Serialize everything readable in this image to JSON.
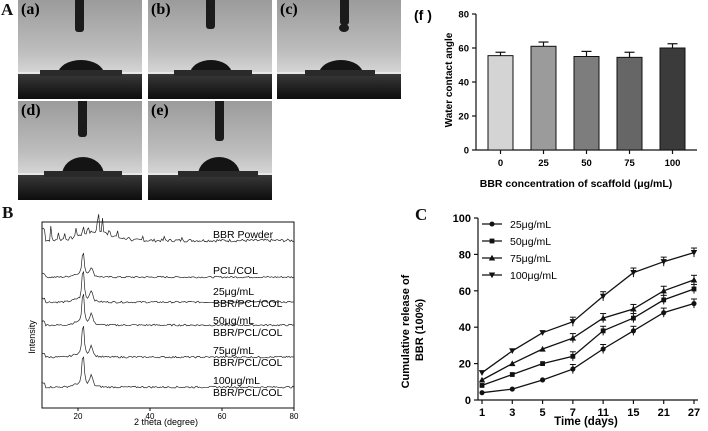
{
  "panel_a": {
    "letter": "A",
    "photos": [
      {
        "label": "(a)"
      },
      {
        "label": "(b)"
      },
      {
        "label": "(c)"
      },
      {
        "label": "(d)"
      },
      {
        "label": "(e)"
      }
    ]
  },
  "panel_b": {
    "letter": "B"
  },
  "panel_c": {
    "letter": "C"
  },
  "chart_data": [
    {
      "id": "f",
      "type": "bar",
      "panel_label": "(f )",
      "categories": [
        "0",
        "25",
        "50",
        "75",
        "100"
      ],
      "values": [
        55.5,
        61,
        55,
        54.5,
        60
      ],
      "errors": [
        2,
        2.5,
        3,
        3,
        2.5
      ],
      "bar_colors": [
        "#d4d4d4",
        "#9b9b9b",
        "#7d7d7d",
        "#666666",
        "#3b3b3b"
      ],
      "xlabel": "BBR concentration of scaffold (μg/mL)",
      "ylabel": "Water contact angle",
      "ylim": [
        0,
        80
      ],
      "yticks": [
        "0",
        "20",
        "40",
        "60",
        "80"
      ]
    },
    {
      "id": "B",
      "type": "line",
      "xlabel": "2 theta (degree)",
      "ylabel": "Intensity",
      "xlim": [
        10,
        80
      ],
      "xticks": [
        "20",
        "40",
        "60",
        "80"
      ],
      "series_labels": [
        {
          "lines": [
            "BBR Powder"
          ]
        },
        {
          "lines": [
            "PCL/COL"
          ]
        },
        {
          "lines": [
            "25μg/mL",
            "BBR/PCL/COL"
          ]
        },
        {
          "lines": [
            "50μg/mL",
            "BBR/PCL/COL"
          ]
        },
        {
          "lines": [
            "75μg/mL",
            "BBR/PCL/COL"
          ]
        },
        {
          "lines": [
            "100μg/mL",
            "BBR/PCL/COL"
          ]
        }
      ]
    },
    {
      "id": "C",
      "type": "line",
      "x": [
        "1",
        "3",
        "5",
        "7",
        "11",
        "15",
        "21",
        "27"
      ],
      "xlabel": "Time (days)",
      "ylabel": "Cumulative release of BBR (100%)",
      "ylabel_lines": [
        "Cumulative release of",
        "BBR (100%)"
      ],
      "ylim": [
        0,
        100
      ],
      "yticks": [
        "0",
        "20",
        "40",
        "60",
        "80",
        "100"
      ],
      "series": [
        {
          "name": "25μg/mL",
          "marker": "circle",
          "values": [
            4,
            6,
            11,
            17,
            28,
            38,
            48,
            53
          ]
        },
        {
          "name": "50μg/mL",
          "marker": "square",
          "values": [
            8,
            14,
            20,
            24,
            38,
            45,
            55,
            61
          ]
        },
        {
          "name": "75μg/mL",
          "marker": "triangle-up",
          "values": [
            11,
            20,
            28,
            34,
            45,
            50,
            60,
            66
          ]
        },
        {
          "name": "100μg/mL",
          "marker": "triangle-down",
          "values": [
            15,
            27,
            37,
            43,
            57,
            70,
            76,
            81
          ]
        }
      ]
    }
  ]
}
